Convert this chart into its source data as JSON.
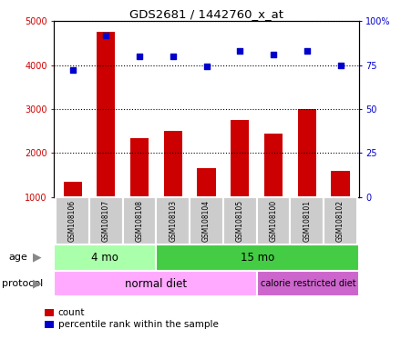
{
  "title": "GDS2681 / 1442760_x_at",
  "samples": [
    "GSM108106",
    "GSM108107",
    "GSM108108",
    "GSM108103",
    "GSM108104",
    "GSM108105",
    "GSM108100",
    "GSM108101",
    "GSM108102"
  ],
  "counts": [
    1350,
    4750,
    2350,
    2500,
    1650,
    2750,
    2450,
    3000,
    1600
  ],
  "percentiles": [
    72,
    92,
    80,
    80,
    74,
    83,
    81,
    83,
    75
  ],
  "ylim_left": [
    1000,
    5000
  ],
  "ylim_right": [
    0,
    100
  ],
  "yticks_left": [
    1000,
    2000,
    3000,
    4000,
    5000
  ],
  "ytick_labels_right": [
    "0",
    "25",
    "50",
    "75",
    "100%"
  ],
  "bar_color": "#cc0000",
  "dot_color": "#0000cc",
  "age_groups": [
    {
      "label": "4 mo",
      "start": 0,
      "end": 3,
      "color": "#aaffaa"
    },
    {
      "label": "15 mo",
      "start": 3,
      "end": 9,
      "color": "#44cc44"
    }
  ],
  "protocol_groups": [
    {
      "label": "normal diet",
      "start": 0,
      "end": 6,
      "color": "#ffaaff"
    },
    {
      "label": "calorie restricted diet",
      "start": 6,
      "end": 9,
      "color": "#cc66cc"
    }
  ],
  "legend_count_label": "count",
  "legend_pct_label": "percentile rank within the sample",
  "background_color": "#ffffff",
  "label_area_color": "#cccccc",
  "age_label": "age",
  "protocol_label": "protocol"
}
